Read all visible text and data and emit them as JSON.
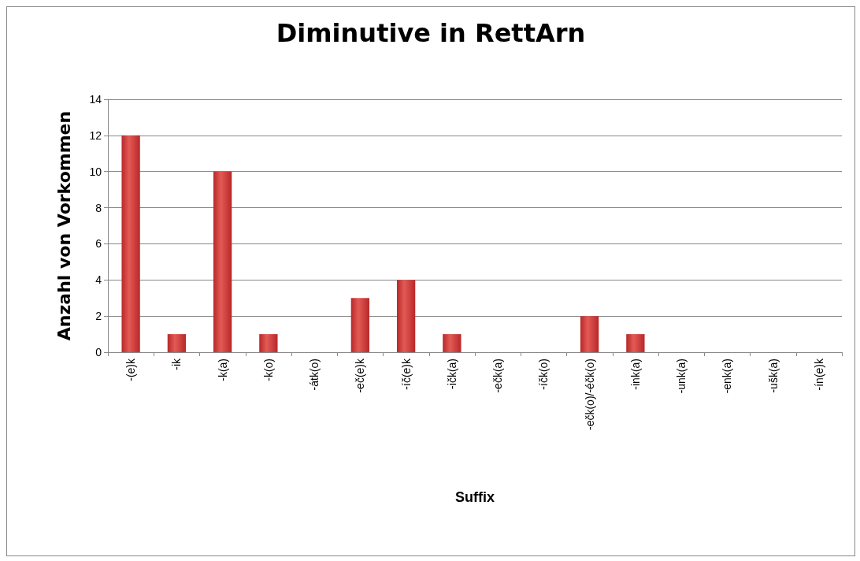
{
  "chart_data": {
    "type": "bar",
    "title": "Diminutive in RettArn",
    "xlabel": "Suffix",
    "ylabel": "Anzahl von Vorkommen",
    "categories": [
      "-(e)k",
      "-ik",
      "-k(a)",
      "-k(o)",
      "-átk(o)",
      "-eč(e)k",
      "-íč(e)k",
      "-ičk(a)",
      "-ečk(a)",
      "-íčk(o)",
      "-ečk(o)/-éčk(o)",
      "-ink(a)",
      "-unk(a)",
      "-enk(a)",
      "-ušk(a)",
      "-ín(e)k"
    ],
    "values": [
      12,
      1,
      10,
      1,
      0,
      3,
      4,
      1,
      0,
      0,
      2,
      1,
      0,
      0,
      0,
      0
    ],
    "color": "#b8282a",
    "ylim": [
      0,
      14
    ],
    "yticks": [
      0,
      2,
      4,
      6,
      8,
      10,
      12,
      14
    ],
    "grid": "y"
  }
}
